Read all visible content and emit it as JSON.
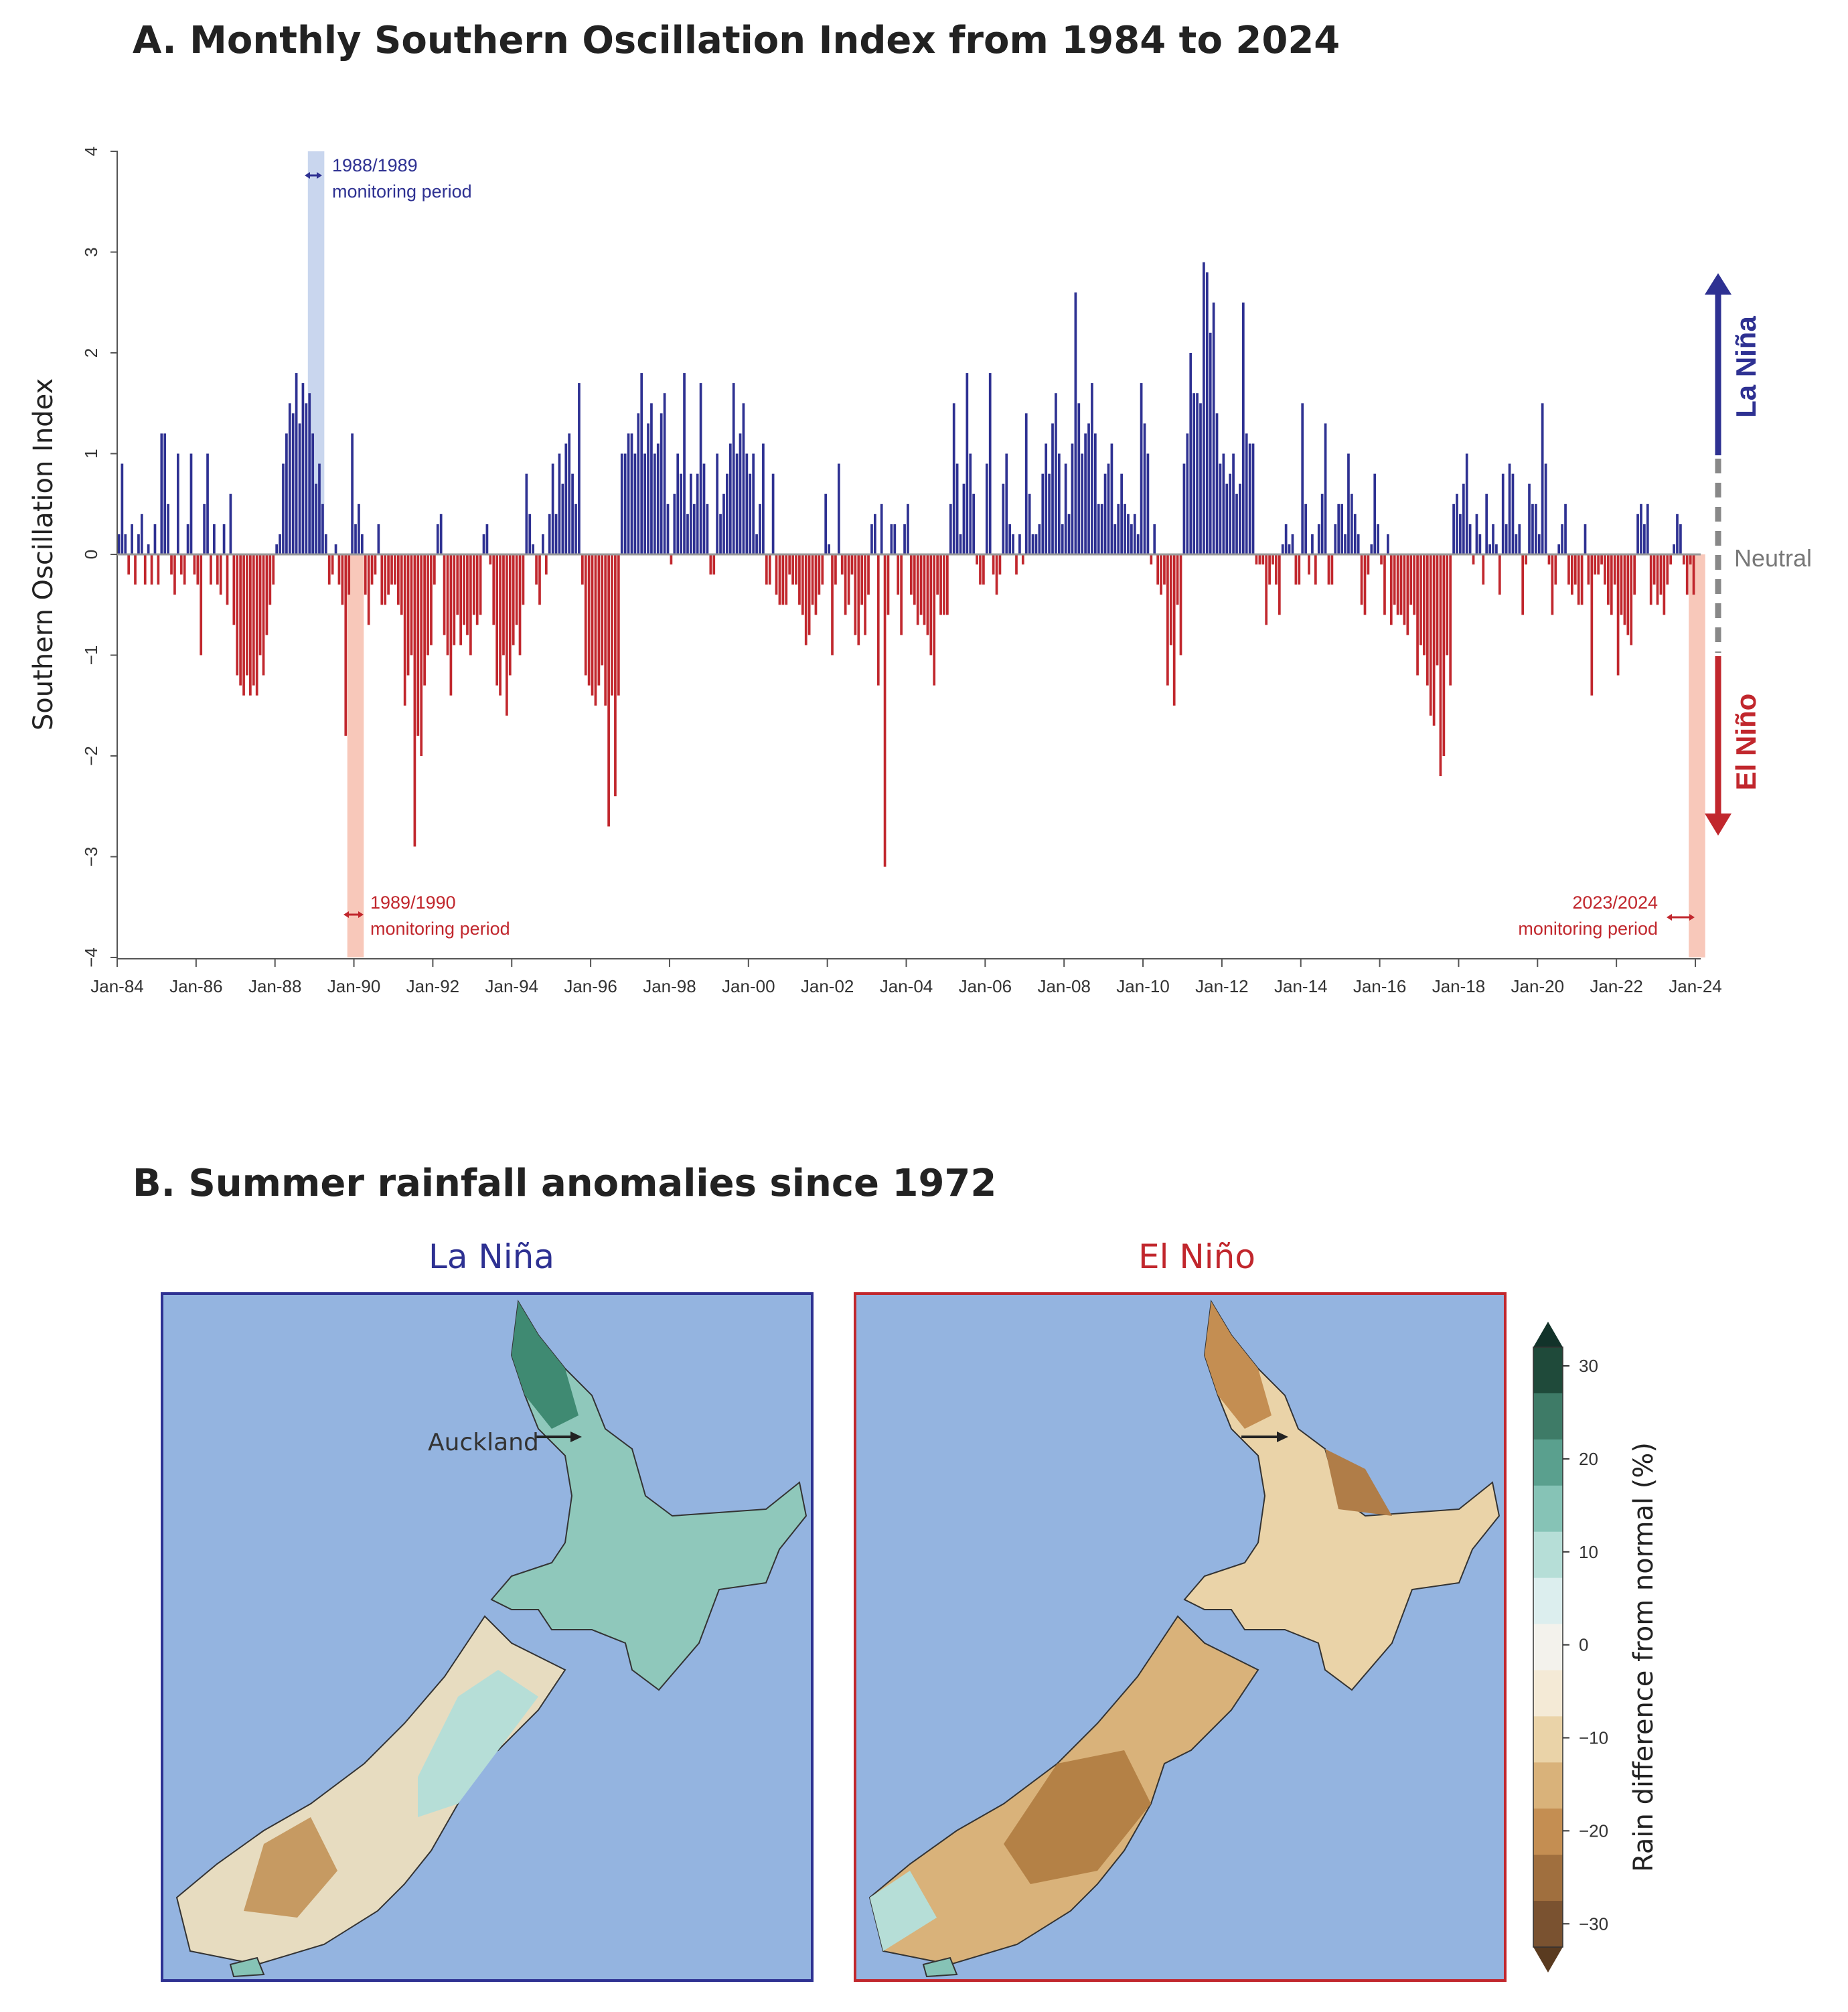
{
  "panel_a": {
    "title": "A. Monthly Southern Oscillation Index from 1984 to 2024",
    "annotations": {
      "p1988": [
        "1988/1989",
        "monitoring period"
      ],
      "p1989": [
        "1989/1990",
        "monitoring period"
      ],
      "p2023": [
        "2023/2024",
        "monitoring period"
      ]
    },
    "side_labels": {
      "la_nina": "La Niña",
      "neutral": "Neutral",
      "el_nino": "El Niño"
    }
  },
  "panel_b": {
    "title": "B. Summer rainfall anomalies since 1972",
    "map_lanina_title": "La Niña",
    "map_elnino_title": "El Niño",
    "auckland_label": "Auckland",
    "colorbar": {
      "label": "Rain difference from normal (%)",
      "ticks": [
        "30",
        "20",
        "10",
        "0",
        "−10",
        "−20",
        "−30"
      ],
      "colors": [
        "#1f4a3a",
        "#3e7b67",
        "#5aa08e",
        "#86c3b6",
        "#b6ded7",
        "#dceeee",
        "#f3f2ec",
        "#f4ead6",
        "#ead3a8",
        "#d9b27a",
        "#c48e52",
        "#a06f3e",
        "#7a5230"
      ]
    }
  },
  "colors": {
    "positive": "#2e3192",
    "negative": "#c1272d",
    "neutral": "#999999",
    "shade_blue": "#c9d6ee",
    "shade_red": "#f8c8ba",
    "ocean": "#94b4e0"
  },
  "chart_data": {
    "type": "bar",
    "title": "A. Monthly Southern Oscillation Index from 1984 to 2024",
    "ylabel": "Southern Oscillation Index",
    "xlabel": "",
    "ylim": [
      -4,
      4
    ],
    "yticks": [
      "4",
      "3",
      "2",
      "1",
      "0",
      "−1",
      "−2",
      "−3",
      "−4"
    ],
    "x_tick_labels": [
      "Jan-84",
      "Jan-86",
      "Jan-88",
      "Jan-90",
      "Jan-92",
      "Jan-94",
      "Jan-96",
      "Jan-98",
      "Jan-00",
      "Jan-02",
      "Jan-04",
      "Jan-06",
      "Jan-08",
      "Jan-10",
      "Jan-12",
      "Jan-14",
      "Jan-16",
      "Jan-18",
      "Jan-20",
      "Jan-22",
      "Jan-24"
    ],
    "start": "Jan-84",
    "frequency": "monthly",
    "highlight_periods": [
      {
        "label": "1988/1989 monitoring period",
        "from": "Nov-88",
        "to": "Mar-89",
        "color": "blue"
      },
      {
        "label": "1989/1990 monitoring period",
        "from": "Nov-89",
        "to": "Mar-90",
        "color": "red"
      },
      {
        "label": "2023/2024 monitoring period",
        "from": "Nov-23",
        "to": "Mar-24",
        "color": "red"
      }
    ],
    "values": [
      0.2,
      0.9,
      0.2,
      -0.2,
      0.3,
      -0.3,
      0.2,
      0.4,
      -0.3,
      0.1,
      -0.3,
      0.3,
      -0.3,
      1.2,
      1.2,
      0.5,
      -0.2,
      -0.4,
      1.0,
      -0.2,
      -0.3,
      0.3,
      1.0,
      -0.2,
      -0.3,
      -1.0,
      0.5,
      1.0,
      -0.3,
      0.3,
      -0.3,
      -0.4,
      0.3,
      -0.5,
      0.6,
      -0.7,
      -1.2,
      -1.3,
      -1.4,
      -1.2,
      -1.4,
      -1.3,
      -1.4,
      -1.0,
      -1.2,
      -0.8,
      -0.5,
      -0.3,
      0.1,
      0.2,
      0.9,
      1.2,
      1.5,
      1.4,
      1.8,
      1.3,
      1.7,
      1.5,
      1.6,
      1.2,
      0.7,
      0.9,
      0.5,
      0.2,
      -0.3,
      -0.2,
      0.1,
      -0.3,
      -0.5,
      -1.8,
      -0.4,
      1.2,
      0.3,
      0.5,
      0.2,
      -0.4,
      -0.7,
      -0.3,
      -0.2,
      0.3,
      -0.5,
      -0.5,
      -0.4,
      -0.3,
      -0.3,
      -0.5,
      -0.6,
      -1.5,
      -1.2,
      -1.0,
      -2.9,
      -1.8,
      -2.0,
      -1.3,
      -1.0,
      -0.9,
      -0.3,
      0.3,
      0.4,
      -0.8,
      -1.0,
      -1.4,
      -0.9,
      -0.6,
      -0.9,
      -0.7,
      -0.8,
      -1.0,
      -0.6,
      -0.7,
      -0.6,
      0.2,
      0.3,
      -0.1,
      -0.7,
      -1.3,
      -1.4,
      -1.0,
      -1.6,
      -1.2,
      -0.9,
      -0.7,
      -1.0,
      -0.5,
      0.8,
      0.4,
      0.1,
      -0.3,
      -0.5,
      0.2,
      -0.2,
      0.4,
      0.9,
      0.4,
      1.0,
      0.7,
      1.1,
      1.2,
      0.8,
      0.5,
      1.7,
      -0.3,
      -1.2,
      -1.3,
      -1.4,
      -1.5,
      -1.3,
      -1.1,
      -1.5,
      -2.7,
      -1.4,
      -2.4,
      -1.4,
      1.0,
      1.0,
      1.2,
      1.2,
      1.0,
      1.4,
      1.8,
      1.0,
      1.3,
      1.5,
      1.0,
      1.1,
      1.4,
      1.6,
      0.5,
      -0.1,
      0.6,
      1.0,
      0.8,
      1.8,
      0.4,
      0.8,
      0.5,
      0.8,
      1.7,
      0.9,
      0.5,
      -0.2,
      -0.2,
      1.0,
      0.4,
      0.6,
      0.8,
      1.1,
      1.7,
      1.0,
      1.2,
      1.5,
      1.0,
      0.8,
      1.0,
      0.2,
      0.5,
      1.1,
      -0.3,
      -0.3,
      0.8,
      -0.4,
      -0.5,
      -0.5,
      -0.5,
      -0.2,
      -0.3,
      -0.3,
      -0.5,
      -0.6,
      -0.9,
      -0.8,
      -0.5,
      -0.6,
      -0.4,
      -0.3,
      0.6,
      0.1,
      -1.0,
      -0.3,
      0.9,
      -0.2,
      -0.6,
      -0.5,
      -0.2,
      -0.8,
      -0.9,
      -0.5,
      -0.8,
      -0.4,
      0.3,
      0.4,
      -1.3,
      0.5,
      -3.1,
      -0.6,
      0.3,
      0.3,
      -0.4,
      -0.8,
      0.3,
      0.5,
      -0.4,
      -0.5,
      -0.7,
      -0.6,
      -0.7,
      -0.8,
      -1.0,
      -1.3,
      -0.4,
      -0.6,
      -0.6,
      -0.6,
      0.5,
      1.5,
      0.9,
      0.2,
      0.7,
      1.8,
      1.0,
      0.6,
      -0.1,
      -0.3,
      -0.3,
      0.9,
      1.8,
      -0.2,
      -0.4,
      -0.2,
      0.7,
      1.0,
      0.3,
      0.2,
      -0.2,
      0.2,
      -0.1,
      1.4,
      0.6,
      0.2,
      0.2,
      0.3,
      0.8,
      1.1,
      0.8,
      1.3,
      1.6,
      1.0,
      0.3,
      0.9,
      0.4,
      1.1,
      2.6,
      1.5,
      1.0,
      1.2,
      1.3,
      1.7,
      1.2,
      0.5,
      0.5,
      0.8,
      0.9,
      1.1,
      0.3,
      0.5,
      0.8,
      0.5,
      0.4,
      0.3,
      0.4,
      0.2,
      1.7,
      1.3,
      1.0,
      -0.1,
      0.3,
      -0.3,
      -0.4,
      -0.3,
      -1.3,
      -0.9,
      -1.5,
      -0.5,
      -1.0,
      0.9,
      1.2,
      2.0,
      1.6,
      1.6,
      1.5,
      2.9,
      2.8,
      2.2,
      2.5,
      1.4,
      0.9,
      1.0,
      0.7,
      0.8,
      1.0,
      0.6,
      0.7,
      2.5,
      1.2,
      1.1,
      1.1,
      -0.1,
      -0.1,
      -0.1,
      -0.7,
      -0.3,
      -0.1,
      -0.3,
      -0.6,
      0.1,
      0.3,
      0.1,
      0.2,
      -0.3,
      -0.3,
      1.5,
      0.5,
      -0.2,
      0.2,
      -0.3,
      0.3,
      0.6,
      1.3,
      -0.3,
      -0.3,
      0.3,
      0.5,
      0.5,
      0.2,
      1.0,
      0.6,
      0.4,
      0.2,
      -0.5,
      -0.6,
      -0.2,
      0.1,
      0.8,
      0.3,
      -0.1,
      -0.6,
      0.2,
      -0.7,
      -0.5,
      -0.6,
      -0.6,
      -0.7,
      -0.8,
      -0.5,
      -0.6,
      -1.2,
      -0.9,
      -1.0,
      -1.3,
      -1.6,
      -1.7,
      -1.1,
      -2.2,
      -2.0,
      -1.0,
      -1.3,
      0.5,
      0.6,
      0.4,
      0.7,
      1.0,
      0.3,
      -0.1,
      0.4,
      0.2,
      -0.3,
      0.6,
      0.1,
      0.3,
      0.1,
      -0.4,
      0.8,
      0.3,
      0.9,
      0.8,
      0.2,
      0.3,
      -0.6,
      -0.1,
      0.7,
      0.5,
      0.5,
      0.2,
      1.5,
      0.9,
      -0.1,
      -0.6,
      -0.3,
      0.1,
      0.3,
      0.5,
      -0.3,
      -0.4,
      -0.3,
      -0.5,
      -0.5,
      0.3,
      -0.3,
      -1.4,
      -0.2,
      -0.2,
      -0.1,
      -0.3,
      -0.5,
      -0.6,
      -0.3,
      -1.2,
      -0.6,
      -0.7,
      -0.8,
      -0.9,
      -0.4,
      0.4,
      0.5,
      0.3,
      0.5,
      -0.5,
      -0.3,
      -0.5,
      -0.4,
      -0.6,
      -0.3,
      -0.1,
      0.1,
      0.4,
      0.3,
      -0.1,
      -0.4,
      -0.1,
      -0.4
    ]
  }
}
